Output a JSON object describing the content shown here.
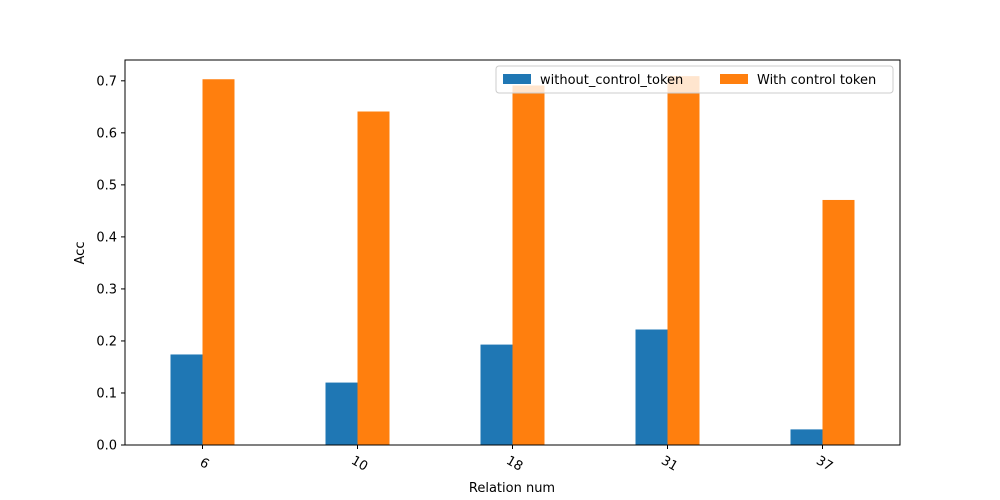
{
  "chart_data": {
    "type": "bar",
    "title": "",
    "xlabel": "Relation num",
    "ylabel": "Acc",
    "categories": [
      "6",
      "10",
      "18",
      "31",
      "37"
    ],
    "series": [
      {
        "name": "without_control_token",
        "color": "#1f77b4",
        "values": [
          0.174,
          0.12,
          0.193,
          0.222,
          0.03
        ]
      },
      {
        "name": "With control token",
        "color": "#ff7f0e",
        "values": [
          0.703,
          0.641,
          0.691,
          0.709,
          0.471
        ]
      }
    ],
    "ylim": [
      0.0,
      0.74
    ],
    "yticks": [
      "0.0",
      "0.1",
      "0.2",
      "0.3",
      "0.4",
      "0.5",
      "0.6",
      "0.7"
    ],
    "grid": false,
    "legend_position": "top-right",
    "xtick_rotation": "30°"
  }
}
